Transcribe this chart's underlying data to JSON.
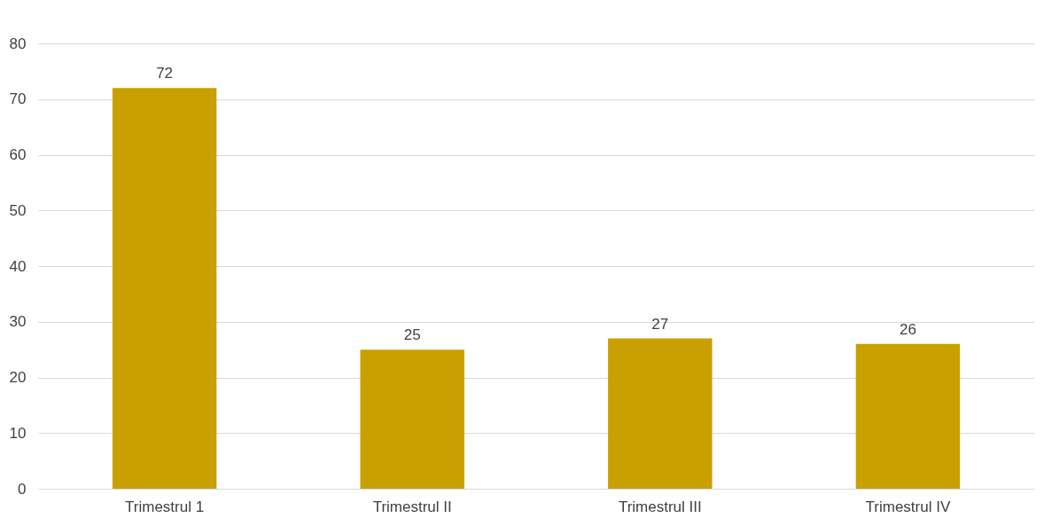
{
  "chart_data": {
    "type": "bar",
    "categories": [
      "Trimestrul 1",
      "Trimestrul II",
      "Trimestrul III",
      "Trimestrul IV"
    ],
    "values": [
      72,
      25,
      27,
      26
    ],
    "color": "#c9a000",
    "ylim": [
      0,
      80
    ],
    "yticks": [
      0,
      10,
      20,
      30,
      40,
      50,
      60,
      70,
      80
    ],
    "grid": "y",
    "data_labels": true
  }
}
